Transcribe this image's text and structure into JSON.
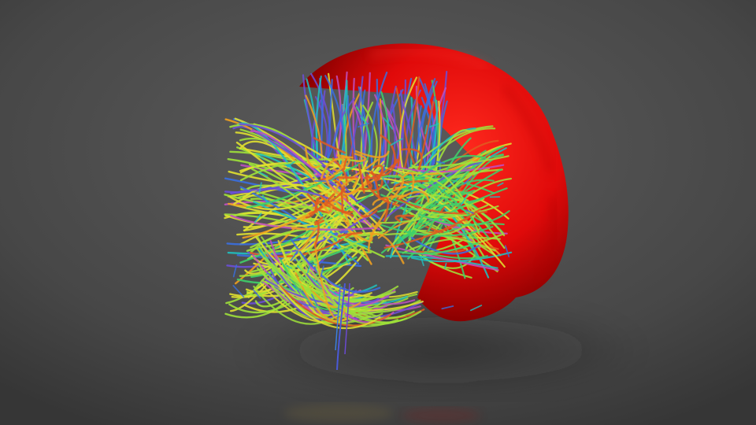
{
  "scene": {
    "background_top": "#5a5a5a",
    "background_bottom": "#3a3a3a",
    "floor": "#2f2f2f",
    "brain_surface": "#e00a0a",
    "brain_highlight": "#ff2a1e",
    "brain_shadow": "#8a0000"
  },
  "tractography": {
    "palette": [
      "#3a6fe0",
      "#6b4fd8",
      "#1fc0c0",
      "#3fd06a",
      "#9fe13a",
      "#e0e030",
      "#f0a020",
      "#e05a20",
      "#c050c0"
    ]
  }
}
